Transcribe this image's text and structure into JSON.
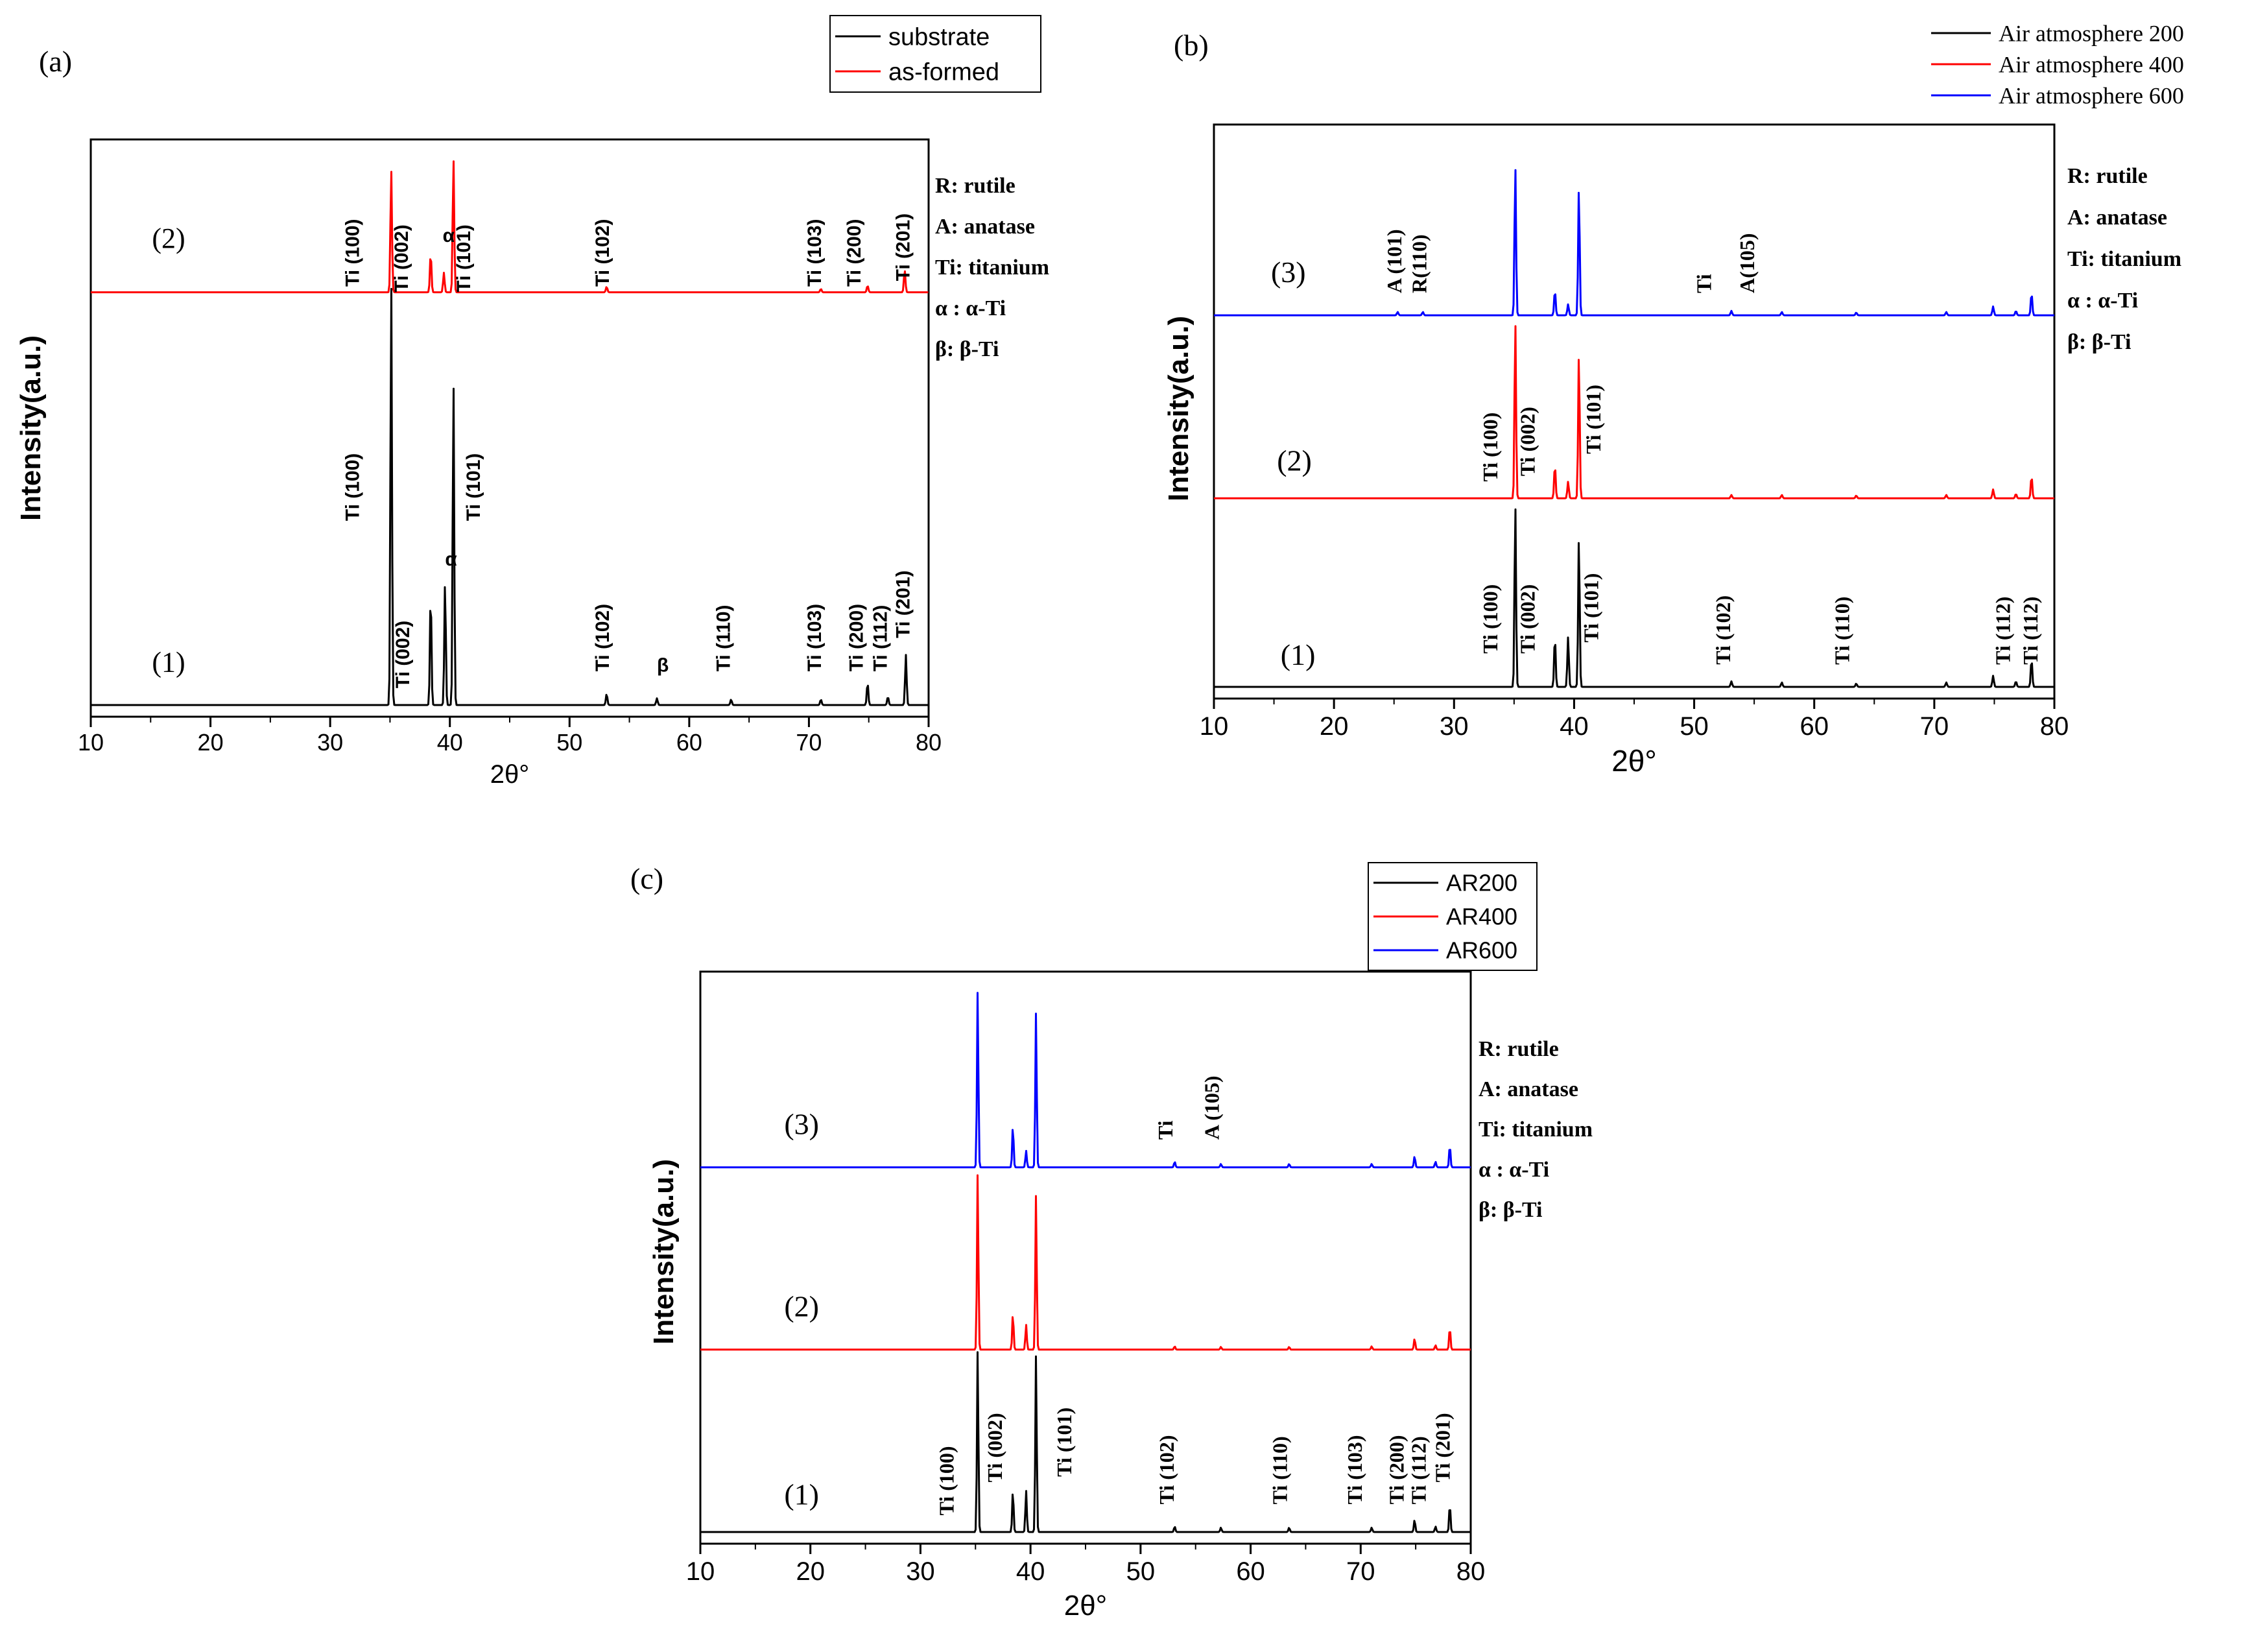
{
  "chart_data": [
    {
      "id": "a",
      "type": "line",
      "panel_label": "(a)",
      "xlabel": "2θ°",
      "ylabel": "Intensity(a.u.)",
      "xlim": [
        10,
        80
      ],
      "xticks": [
        10,
        20,
        30,
        40,
        50,
        60,
        70,
        80
      ],
      "x_tick_labels": [
        "10",
        "20",
        "30",
        "40",
        "50",
        "60",
        "70",
        "80"
      ],
      "legend": {
        "placement": "top-right outside",
        "serif": false,
        "entries": [
          {
            "name": "substrate",
            "color": "#000000"
          },
          {
            "name": "as-formed",
            "color": "#ff0000"
          }
        ]
      },
      "key": [
        "R: rutile",
        "A: anatase",
        "Ti: titanium",
        "α : α-Ti",
        "β: β-Ti"
      ],
      "series": [
        {
          "name": "substrate",
          "curve_label": "(1)",
          "color": "#000000",
          "baseline": 0.0,
          "peaks": [
            {
              "x": 35.1,
              "h": 0.76
            },
            {
              "x": 38.4,
              "h": 0.2
            },
            {
              "x": 39.6,
              "h": 0.22
            },
            {
              "x": 40.3,
              "h": 0.58
            },
            {
              "x": 53.1,
              "h": 0.02
            },
            {
              "x": 57.3,
              "h": 0.012
            },
            {
              "x": 63.5,
              "h": 0.01
            },
            {
              "x": 71.0,
              "h": 0.01
            },
            {
              "x": 74.9,
              "h": 0.04
            },
            {
              "x": 76.6,
              "h": 0.015
            },
            {
              "x": 78.1,
              "h": 0.09
            }
          ]
        },
        {
          "name": "as-formed",
          "curve_label": "(2)",
          "color": "#ff0000",
          "baseline": 0.74,
          "peaks": [
            {
              "x": 35.1,
              "h": 0.22
            },
            {
              "x": 38.4,
              "h": 0.07
            },
            {
              "x": 39.5,
              "h": 0.035
            },
            {
              "x": 40.3,
              "h": 0.24
            },
            {
              "x": 53.1,
              "h": 0.01
            },
            {
              "x": 71.0,
              "h": 0.006
            },
            {
              "x": 74.9,
              "h": 0.012
            },
            {
              "x": 78.0,
              "h": 0.04
            }
          ]
        }
      ],
      "annotations": [
        {
          "text": "Ti (100)",
          "x": 32.4,
          "y": 0.33,
          "rot": -90,
          "serif": false
        },
        {
          "text": "Ti (002)",
          "x": 36.6,
          "y": 0.03,
          "rot": -90,
          "serif": false
        },
        {
          "text": "α",
          "x": 39.6,
          "y": 0.25,
          "rot": 0,
          "serif": false
        },
        {
          "text": "Ti (101)",
          "x": 42.5,
          "y": 0.33,
          "rot": -90,
          "serif": false
        },
        {
          "text": "Ti (102)",
          "x": 53.3,
          "y": 0.06,
          "rot": -90,
          "serif": false
        },
        {
          "text": "β",
          "x": 57.3,
          "y": 0.06,
          "rot": 0,
          "serif": false
        },
        {
          "text": "Ti (110)",
          "x": 63.4,
          "y": 0.06,
          "rot": -90,
          "serif": false
        },
        {
          "text": "Ti (103)",
          "x": 71.0,
          "y": 0.06,
          "rot": -90,
          "serif": false
        },
        {
          "text": "Ti (200)",
          "x": 74.5,
          "y": 0.06,
          "rot": -90,
          "serif": false
        },
        {
          "text": "Ti (112)",
          "x": 76.5,
          "y": 0.06,
          "rot": -90,
          "serif": false
        },
        {
          "text": "Ti (201)",
          "x": 78.4,
          "y": 0.12,
          "rot": -90,
          "serif": false
        },
        {
          "text": "Ti (100)",
          "x": 32.4,
          "y": 0.75,
          "rot": -90,
          "serif": false
        },
        {
          "text": "Ti (002)",
          "x": 36.5,
          "y": 0.74,
          "rot": -90,
          "serif": false
        },
        {
          "text": "α",
          "x": 39.4,
          "y": 0.83,
          "rot": 0,
          "serif": false
        },
        {
          "text": "Ti (101)",
          "x": 41.7,
          "y": 0.74,
          "rot": -90,
          "serif": false
        },
        {
          "text": "Ti (102)",
          "x": 53.3,
          "y": 0.75,
          "rot": -90,
          "serif": false
        },
        {
          "text": "Ti (103)",
          "x": 71.0,
          "y": 0.75,
          "rot": -90,
          "serif": false
        },
        {
          "text": "Ti (200)",
          "x": 74.3,
          "y": 0.75,
          "rot": -90,
          "serif": false
        },
        {
          "text": "Ti (201)",
          "x": 78.4,
          "y": 0.76,
          "rot": -90,
          "serif": false
        }
      ],
      "curve_label_pos": [
        {
          "x": 16.5,
          "y": 0.06
        },
        {
          "x": 16.5,
          "y": 0.82
        }
      ]
    },
    {
      "id": "b",
      "type": "line",
      "panel_label": "(b)",
      "xlabel": "2θ°",
      "ylabel": "Intensity(a.u.)",
      "xlim": [
        10,
        80
      ],
      "xticks": [
        10,
        20,
        30,
        40,
        50,
        60,
        70,
        80
      ],
      "x_tick_labels": [
        "10",
        "20",
        "30",
        "40",
        "50",
        "60",
        "70",
        "80"
      ],
      "legend": {
        "placement": "top-right outside",
        "serif": true,
        "entries": [
          {
            "name": "Air atmosphere 200",
            "color": "#000000"
          },
          {
            "name": "Air atmosphere 400",
            "color": "#ff0000"
          },
          {
            "name": "Air atmosphere 600",
            "color": "#0000ff"
          }
        ]
      },
      "key": [
        "R: rutile",
        "A: anatase",
        "Ti: titanium",
        "α : α-Ti",
        "β: β-Ti"
      ],
      "series": [
        {
          "name": "Air atmosphere 200",
          "curve_label": "(1)",
          "color": "#000000",
          "baseline": 0.0,
          "peaks": [
            {
              "x": 35.1,
              "h": 0.33
            },
            {
              "x": 38.4,
              "h": 0.09
            },
            {
              "x": 39.5,
              "h": 0.09
            },
            {
              "x": 40.4,
              "h": 0.27
            },
            {
              "x": 53.1,
              "h": 0.01
            },
            {
              "x": 57.3,
              "h": 0.008
            },
            {
              "x": 63.5,
              "h": 0.006
            },
            {
              "x": 71.0,
              "h": 0.008
            },
            {
              "x": 74.9,
              "h": 0.02
            },
            {
              "x": 76.8,
              "h": 0.01
            },
            {
              "x": 78.1,
              "h": 0.05
            }
          ]
        },
        {
          "name": "Air atmosphere 400",
          "curve_label": "(2)",
          "color": "#ff0000",
          "baseline": 0.34,
          "peaks": [
            {
              "x": 35.1,
              "h": 0.32
            },
            {
              "x": 38.4,
              "h": 0.06
            },
            {
              "x": 39.5,
              "h": 0.03
            },
            {
              "x": 40.4,
              "h": 0.26
            },
            {
              "x": 53.1,
              "h": 0.006
            },
            {
              "x": 57.3,
              "h": 0.006
            },
            {
              "x": 63.5,
              "h": 0.005
            },
            {
              "x": 71.0,
              "h": 0.006
            },
            {
              "x": 74.9,
              "h": 0.016
            },
            {
              "x": 76.8,
              "h": 0.008
            },
            {
              "x": 78.1,
              "h": 0.04
            }
          ]
        },
        {
          "name": "Air atmosphere 600",
          "curve_label": "(3)",
          "color": "#0000ff",
          "baseline": 0.67,
          "peaks": [
            {
              "x": 25.3,
              "h": 0.006
            },
            {
              "x": 27.4,
              "h": 0.006
            },
            {
              "x": 35.1,
              "h": 0.27
            },
            {
              "x": 38.4,
              "h": 0.045
            },
            {
              "x": 39.5,
              "h": 0.02
            },
            {
              "x": 40.4,
              "h": 0.23
            },
            {
              "x": 53.1,
              "h": 0.008
            },
            {
              "x": 57.3,
              "h": 0.006
            },
            {
              "x": 63.5,
              "h": 0.005
            },
            {
              "x": 71.0,
              "h": 0.006
            },
            {
              "x": 74.9,
              "h": 0.016
            },
            {
              "x": 76.8,
              "h": 0.008
            },
            {
              "x": 78.1,
              "h": 0.04
            }
          ]
        }
      ],
      "annotations": [
        {
          "text": "Ti (100)",
          "x": 33.6,
          "y": 0.06,
          "rot": -90,
          "serif": true
        },
        {
          "text": "Ti (002)",
          "x": 36.7,
          "y": 0.06,
          "rot": -90,
          "serif": true
        },
        {
          "text": "Ti (101)",
          "x": 42.0,
          "y": 0.08,
          "rot": -90,
          "serif": true
        },
        {
          "text": "Ti (102)",
          "x": 53.0,
          "y": 0.04,
          "rot": -90,
          "serif": true
        },
        {
          "text": "Ti (110)",
          "x": 62.9,
          "y": 0.04,
          "rot": -90,
          "serif": true
        },
        {
          "text": "Ti (112)",
          "x": 76.3,
          "y": 0.04,
          "rot": -90,
          "serif": true
        },
        {
          "text": "Ti (112)",
          "x": 78.6,
          "y": 0.04,
          "rot": -90,
          "serif": true
        },
        {
          "text": "Ti (100)",
          "x": 33.6,
          "y": 0.37,
          "rot": -90,
          "serif": true
        },
        {
          "text": "Ti (002)",
          "x": 36.7,
          "y": 0.38,
          "rot": -90,
          "serif": true
        },
        {
          "text": "Ti (101)",
          "x": 42.2,
          "y": 0.42,
          "rot": -90,
          "serif": true
        },
        {
          "text": "A (101)",
          "x": 25.6,
          "y": 0.71,
          "rot": -90,
          "serif": true
        },
        {
          "text": "R(110)",
          "x": 27.7,
          "y": 0.71,
          "rot": -90,
          "serif": true
        },
        {
          "text": "Ti",
          "x": 51.4,
          "y": 0.71,
          "rot": -90,
          "serif": true
        },
        {
          "text": "A(105)",
          "x": 55.0,
          "y": 0.71,
          "rot": -90,
          "serif": true
        }
      ],
      "curve_label_pos": [
        {
          "x": 17.0,
          "y": 0.04
        },
        {
          "x": 16.7,
          "y": 0.39
        },
        {
          "x": 16.2,
          "y": 0.73
        }
      ]
    },
    {
      "id": "c",
      "type": "line",
      "panel_label": "(c)",
      "xlabel": "2θ°",
      "ylabel": "Intensity(a.u.)",
      "xlim": [
        10,
        80
      ],
      "xticks": [
        10,
        20,
        30,
        40,
        50,
        60,
        70,
        80
      ],
      "x_tick_labels": [
        "10",
        "20",
        "30",
        "40",
        "50",
        "60",
        "70",
        "80"
      ],
      "legend": {
        "placement": "top-right outside",
        "serif": false,
        "entries": [
          {
            "name": "AR200",
            "color": "#000000"
          },
          {
            "name": "AR400",
            "color": "#ff0000"
          },
          {
            "name": "AR600",
            "color": "#0000ff"
          }
        ]
      },
      "key": [
        "R: rutile",
        "A: anatase",
        "Ti: titanium",
        "α : α-Ti",
        "β: β-Ti"
      ],
      "series": [
        {
          "name": "AR200",
          "curve_label": "(1)",
          "color": "#000000",
          "baseline": 0.0,
          "peaks": [
            {
              "x": 35.2,
              "h": 0.33
            },
            {
              "x": 38.4,
              "h": 0.075
            },
            {
              "x": 39.6,
              "h": 0.075
            },
            {
              "x": 40.5,
              "h": 0.32
            },
            {
              "x": 53.1,
              "h": 0.01
            },
            {
              "x": 57.3,
              "h": 0.008
            },
            {
              "x": 63.5,
              "h": 0.008
            },
            {
              "x": 71.0,
              "h": 0.008
            },
            {
              "x": 74.9,
              "h": 0.022
            },
            {
              "x": 76.8,
              "h": 0.01
            },
            {
              "x": 78.1,
              "h": 0.05
            }
          ]
        },
        {
          "name": "AR400",
          "curve_label": "(2)",
          "color": "#ff0000",
          "baseline": 0.33,
          "peaks": [
            {
              "x": 35.2,
              "h": 0.32
            },
            {
              "x": 38.4,
              "h": 0.065
            },
            {
              "x": 39.6,
              "h": 0.045
            },
            {
              "x": 40.5,
              "h": 0.28
            },
            {
              "x": 53.1,
              "h": 0.006
            },
            {
              "x": 57.3,
              "h": 0.005
            },
            {
              "x": 63.5,
              "h": 0.005
            },
            {
              "x": 71.0,
              "h": 0.006
            },
            {
              "x": 74.9,
              "h": 0.02
            },
            {
              "x": 76.8,
              "h": 0.008
            },
            {
              "x": 78.1,
              "h": 0.04
            }
          ]
        },
        {
          "name": "AR600",
          "curve_label": "(3)",
          "color": "#0000ff",
          "baseline": 0.66,
          "peaks": [
            {
              "x": 35.2,
              "h": 0.32
            },
            {
              "x": 38.4,
              "h": 0.075
            },
            {
              "x": 39.6,
              "h": 0.03
            },
            {
              "x": 40.5,
              "h": 0.28
            },
            {
              "x": 53.1,
              "h": 0.01
            },
            {
              "x": 57.3,
              "h": 0.006
            },
            {
              "x": 63.5,
              "h": 0.006
            },
            {
              "x": 71.0,
              "h": 0.006
            },
            {
              "x": 74.9,
              "h": 0.02
            },
            {
              "x": 76.8,
              "h": 0.01
            },
            {
              "x": 78.1,
              "h": 0.04
            }
          ]
        }
      ],
      "annotations": [
        {
          "text": "Ti (100)",
          "x": 33.0,
          "y": 0.03,
          "rot": -90,
          "serif": true
        },
        {
          "text": "Ti (002)",
          "x": 37.4,
          "y": 0.09,
          "rot": -90,
          "serif": true
        },
        {
          "text": "Ti (101)",
          "x": 43.7,
          "y": 0.1,
          "rot": -90,
          "serif": true
        },
        {
          "text": "Ti (102)",
          "x": 53.0,
          "y": 0.05,
          "rot": -90,
          "serif": true
        },
        {
          "text": "Ti (110)",
          "x": 63.3,
          "y": 0.05,
          "rot": -90,
          "serif": true
        },
        {
          "text": "Ti (103)",
          "x": 70.1,
          "y": 0.05,
          "rot": -90,
          "serif": true
        },
        {
          "text": "Ti (200)",
          "x": 73.9,
          "y": 0.05,
          "rot": -90,
          "serif": true
        },
        {
          "text": "Ti (112)",
          "x": 75.9,
          "y": 0.05,
          "rot": -90,
          "serif": true
        },
        {
          "text": "Ti (201)",
          "x": 78.1,
          "y": 0.09,
          "rot": -90,
          "serif": true
        },
        {
          "text": "Ti",
          "x": 52.9,
          "y": 0.71,
          "rot": -90,
          "serif": true
        },
        {
          "text": "A (105)",
          "x": 57.1,
          "y": 0.71,
          "rot": -90,
          "serif": true
        }
      ],
      "curve_label_pos": [
        {
          "x": 19.2,
          "y": 0.05
        },
        {
          "x": 19.2,
          "y": 0.39
        },
        {
          "x": 19.2,
          "y": 0.72
        }
      ]
    }
  ]
}
